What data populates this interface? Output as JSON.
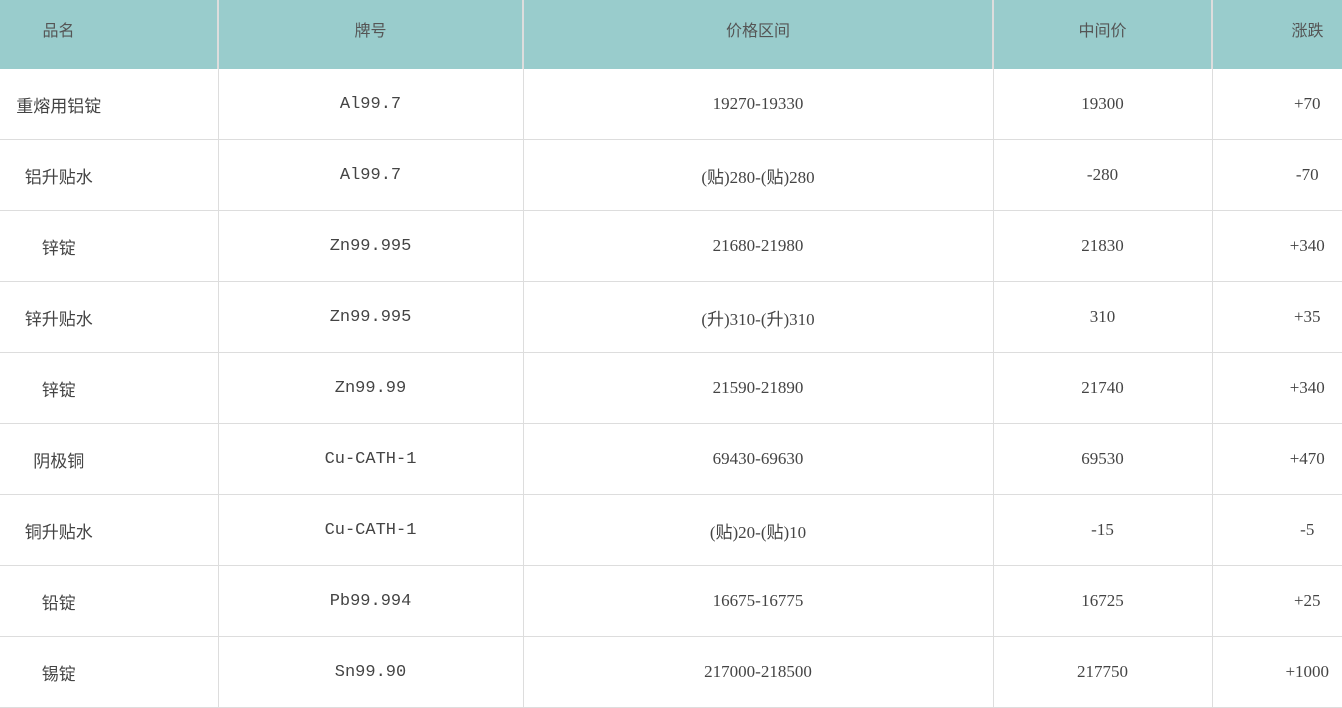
{
  "colors": {
    "header_bg": "#99cccc"
  },
  "columns": [
    "品名",
    "牌号",
    "价格区间",
    "中间价",
    "涨跌"
  ],
  "rows": [
    {
      "name": "重熔用铝锭",
      "grade": "Al99.7",
      "range": "19270-19330",
      "mid": "19300",
      "change": "+70"
    },
    {
      "name": "铝升贴水",
      "grade": "Al99.7",
      "range": "(贴)280-(贴)280",
      "mid": "-280",
      "change": "-70"
    },
    {
      "name": "锌锭",
      "grade": "Zn99.995",
      "range": "21680-21980",
      "mid": "21830",
      "change": "+340"
    },
    {
      "name": "锌升贴水",
      "grade": "Zn99.995",
      "range": "(升)310-(升)310",
      "mid": "310",
      "change": "+35"
    },
    {
      "name": "锌锭",
      "grade": "Zn99.99",
      "range": "21590-21890",
      "mid": "21740",
      "change": "+340"
    },
    {
      "name": "阴极铜",
      "grade": "Cu-CATH-1",
      "range": "69430-69630",
      "mid": "69530",
      "change": "+470"
    },
    {
      "name": "铜升贴水",
      "grade": "Cu-CATH-1",
      "range": "(贴)20-(贴)10",
      "mid": "-15",
      "change": "-5"
    },
    {
      "name": "铅锭",
      "grade": "Pb99.994",
      "range": "16675-16775",
      "mid": "16725",
      "change": "+25"
    },
    {
      "name": "锡锭",
      "grade": "Sn99.90",
      "range": "217000-218500",
      "mid": "217750",
      "change": "+1000"
    }
  ]
}
